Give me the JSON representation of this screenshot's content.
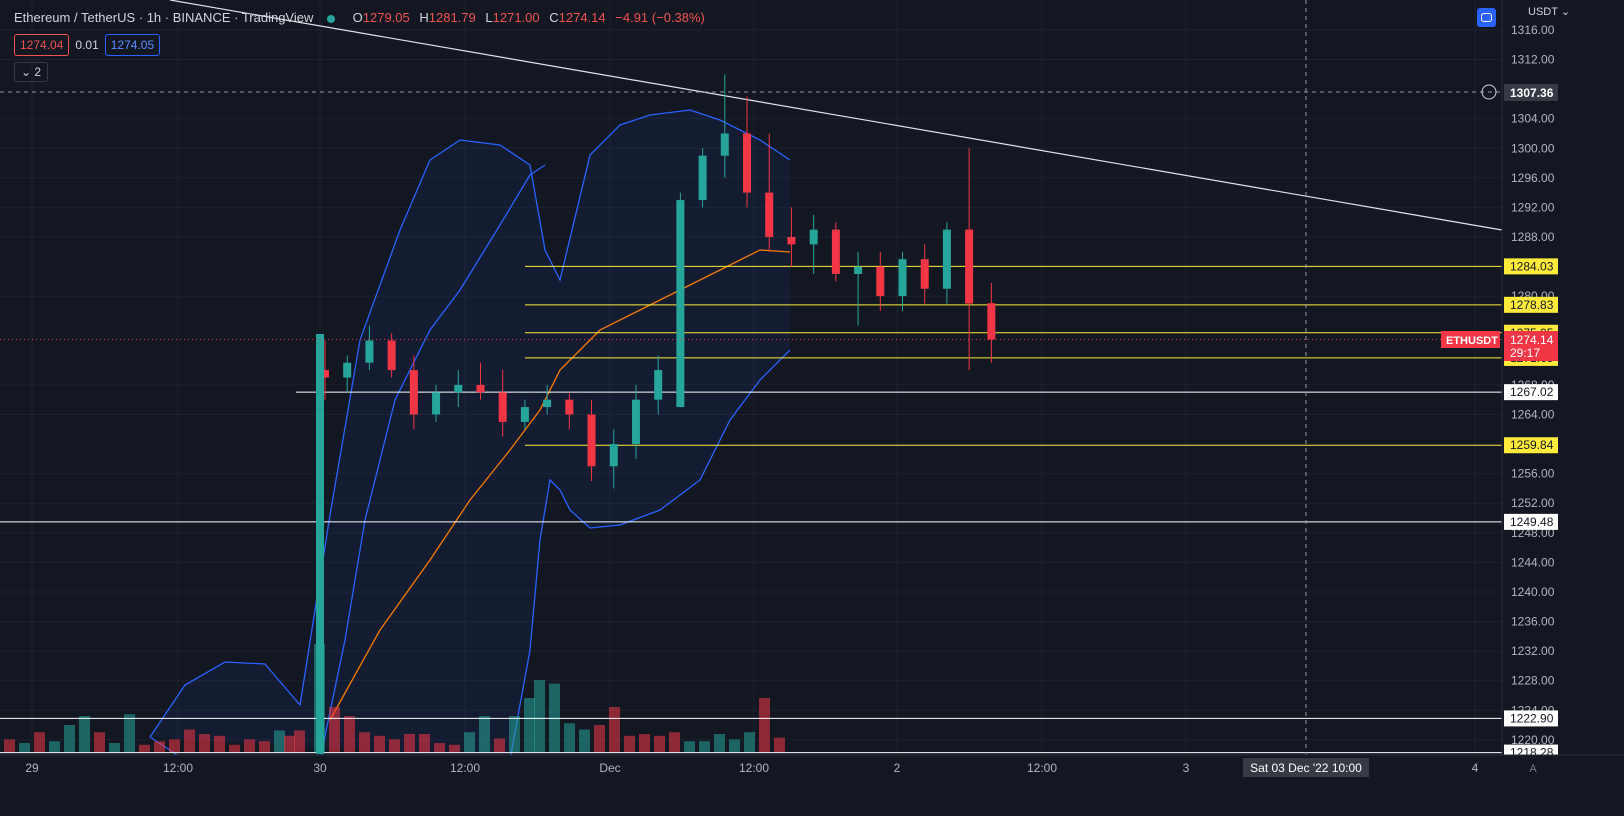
{
  "header": {
    "title": "Ethereum / TetherUS · 1h · BINANCE · TradingView",
    "ohlc_labels": [
      "O",
      "H",
      "L",
      "C"
    ],
    "ohlc_values": [
      "1279.05",
      "1281.79",
      "1271.00",
      "1274.14"
    ],
    "change": "−4.91 (−0.38%)",
    "bid": "1274.04",
    "spread": "0.01",
    "ask": "1274.05",
    "indicators_count": "2",
    "currency": "USDT"
  },
  "colors": {
    "up": "#26a69a",
    "down": "#f23645",
    "level_yellow": "#ffeb3b",
    "bb": "#2962ff",
    "ma": "#f57c00",
    "bg": "#131722"
  },
  "crosshair": {
    "price_label": "1307.36",
    "time_label": "Sat 03 Dec '22   10:00"
  },
  "symbol_tag": {
    "name": "ETHUSDT",
    "price": "1274.14",
    "countdown": "29:17"
  },
  "autoscale_label": "A",
  "chart_data": {
    "type": "candlestick",
    "y_ticks": [
      1316,
      1312,
      1304,
      1300,
      1296,
      1292,
      1288,
      1280,
      1268,
      1264,
      1256,
      1252,
      1248,
      1244,
      1240,
      1236,
      1232,
      1228,
      1224,
      1220
    ],
    "x_ticks": [
      "29",
      "12:00",
      "30",
      "12:00",
      "Dec",
      "12:00",
      "2",
      "12:00",
      "3",
      "4"
    ],
    "levels_yellow": [
      {
        "price": 1284.03,
        "label": "1284.03"
      },
      {
        "price": 1278.83,
        "label": "1278.83"
      },
      {
        "price": 1275.05,
        "label": "1275.05"
      },
      {
        "price": 1271.65,
        "label": "1271.65"
      },
      {
        "price": 1259.84,
        "label": "1259.84"
      }
    ],
    "levels_white": [
      {
        "price": 1267.02,
        "label": "1267.02"
      },
      {
        "price": 1249.48,
        "label": "1249.48"
      },
      {
        "price": 1222.9,
        "label": "1222.90"
      },
      {
        "price": 1218.28,
        "label": "1218.28"
      }
    ],
    "candles": [
      {
        "t": 0,
        "o": 1270,
        "h": 1274,
        "l": 1266,
        "c": 1269
      },
      {
        "t": 1,
        "o": 1269,
        "h": 1272,
        "l": 1267,
        "c": 1271
      },
      {
        "t": 2,
        "o": 1271,
        "h": 1276,
        "l": 1270,
        "c": 1274
      },
      {
        "t": 3,
        "o": 1274,
        "h": 1275,
        "l": 1269,
        "c": 1270
      },
      {
        "t": 4,
        "o": 1270,
        "h": 1272,
        "l": 1262,
        "c": 1264
      },
      {
        "t": 5,
        "o": 1264,
        "h": 1268,
        "l": 1263,
        "c": 1267
      },
      {
        "t": 6,
        "o": 1267,
        "h": 1270,
        "l": 1265,
        "c": 1268
      },
      {
        "t": 7,
        "o": 1268,
        "h": 1271,
        "l": 1266,
        "c": 1267
      },
      {
        "t": 8,
        "o": 1267,
        "h": 1270,
        "l": 1261,
        "c": 1263
      },
      {
        "t": 9,
        "o": 1263,
        "h": 1266,
        "l": 1262,
        "c": 1265
      },
      {
        "t": 10,
        "o": 1265,
        "h": 1268,
        "l": 1264,
        "c": 1266
      },
      {
        "t": 11,
        "o": 1266,
        "h": 1267,
        "l": 1262,
        "c": 1264
      },
      {
        "t": 12,
        "o": 1264,
        "h": 1266,
        "l": 1255,
        "c": 1257
      },
      {
        "t": 13,
        "o": 1257,
        "h": 1262,
        "l": 1254,
        "c": 1260
      },
      {
        "t": 14,
        "o": 1260,
        "h": 1268,
        "l": 1258,
        "c": 1266
      },
      {
        "t": 15,
        "o": 1266,
        "h": 1272,
        "l": 1264,
        "c": 1270
      },
      {
        "t": 16,
        "o": 1265,
        "h": 1294,
        "l": 1265,
        "c": 1293
      },
      {
        "t": 17,
        "o": 1293,
        "h": 1300,
        "l": 1292,
        "c": 1299
      },
      {
        "t": 18,
        "o": 1299,
        "h": 1310,
        "l": 1296,
        "c": 1302
      },
      {
        "t": 19,
        "o": 1302,
        "h": 1307,
        "l": 1292,
        "c": 1294
      },
      {
        "t": 20,
        "o": 1294,
        "h": 1302,
        "l": 1286,
        "c": 1288
      },
      {
        "t": 21,
        "o": 1288,
        "h": 1292,
        "l": 1284,
        "c": 1287
      },
      {
        "t": 22,
        "o": 1287,
        "h": 1291,
        "l": 1283,
        "c": 1289
      },
      {
        "t": 23,
        "o": 1289,
        "h": 1290,
        "l": 1282,
        "c": 1283
      },
      {
        "t": 24,
        "o": 1283,
        "h": 1286,
        "l": 1276,
        "c": 1284
      },
      {
        "t": 25,
        "o": 1284,
        "h": 1286,
        "l": 1278,
        "c": 1280
      },
      {
        "t": 26,
        "o": 1280,
        "h": 1286,
        "l": 1278,
        "c": 1285
      },
      {
        "t": 27,
        "o": 1285,
        "h": 1287,
        "l": 1279,
        "c": 1281
      },
      {
        "t": 28,
        "o": 1281,
        "h": 1290,
        "l": 1279,
        "c": 1289
      },
      {
        "t": 29,
        "o": 1289,
        "h": 1300,
        "l": 1270,
        "c": 1279
      },
      {
        "t": 30,
        "o": 1279.05,
        "h": 1281.79,
        "l": 1271.0,
        "c": 1274.14
      }
    ]
  }
}
